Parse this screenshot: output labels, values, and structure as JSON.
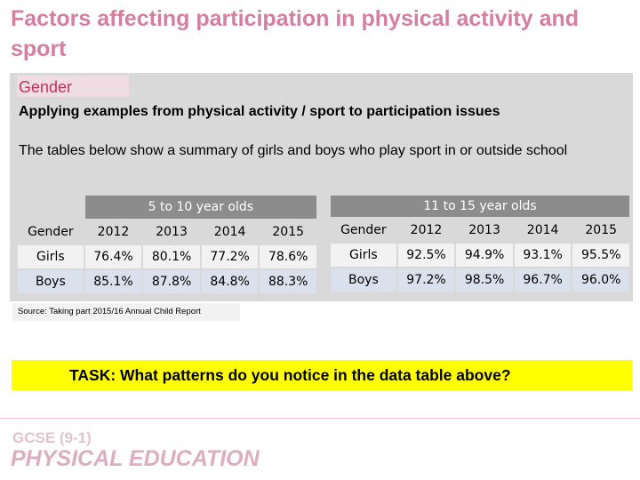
{
  "slide": {
    "title": "Factors affecting participation in physical activity and sport",
    "gender_label": "Gender",
    "subheading": "Applying examples from physical activity / sport to participation issues",
    "intro": "The tables below show a summary of girls and boys who play sport in or outside school",
    "source": "Source: Taking part 2015/16 Annual Child Report",
    "task": "TASK: What patterns do you notice in the data table above?"
  },
  "table_left": {
    "group_label": "5 to 10 year olds",
    "header": [
      "Gender",
      "2012",
      "2013",
      "2014",
      "2015"
    ],
    "rows": [
      [
        "Girls",
        "76.4%",
        "80.1%",
        "77.2%",
        "78.6%"
      ],
      [
        "Boys",
        "85.1%",
        "87.8%",
        "84.8%",
        "88.3%"
      ]
    ]
  },
  "table_right": {
    "group_label": "11 to 15 year olds",
    "header": [
      "Gender",
      "2012",
      "2013",
      "2014",
      "2015"
    ],
    "rows": [
      [
        "Girls",
        "92.5%",
        "94.9%",
        "93.1%",
        "95.5%"
      ],
      [
        "Boys",
        "97.2%",
        "98.5%",
        "96.7%",
        "96.0%"
      ]
    ]
  },
  "logo": {
    "line1": "GCSE (9-1)",
    "line2": "PHYSICAL EDUCATION"
  }
}
